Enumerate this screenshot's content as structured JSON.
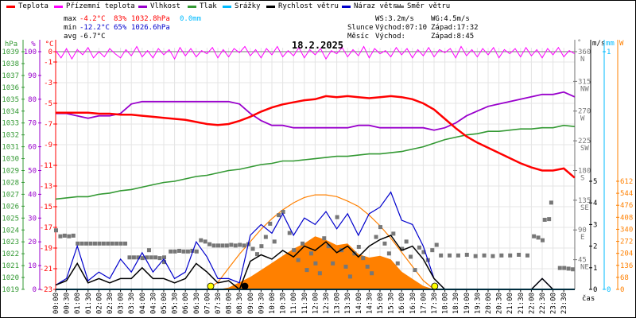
{
  "legend": [
    {
      "label": "Teplota",
      "color": "#ff0000"
    },
    {
      "label": "Přízemní teplota",
      "color": "#ff00ff"
    },
    {
      "label": "Vlhkost",
      "color": "#9900cc"
    },
    {
      "label": "Tlak",
      "color": "#339933"
    },
    {
      "label": "Srážky",
      "color": "#00bbff"
    },
    {
      "label": "Rychlost větru",
      "color": "#000000"
    },
    {
      "label": "Náraz větru",
      "color": "#0000cc"
    },
    {
      "label": "Směr větru",
      "color": "#777777"
    }
  ],
  "stats": {
    "max_label": "max",
    "max_temp": "-4.2°C",
    "max_hum": "83%",
    "max_press": "1032.8hPa",
    "max_rain": "0.0mm",
    "min_label": "min",
    "min_temp": "-12.2°C",
    "min_hum": "65%",
    "min_press": "1026.6hPa",
    "avg_label": "avg",
    "avg_temp": "-6.7°C",
    "ws": "WS:3.2m/s",
    "wg": "WG:4.5m/s",
    "sun_label": "Slunce",
    "sun_rise": "Východ:07:10",
    "sun_set": "Západ:17:32",
    "moon_label": "Měsíc",
    "moon_rise": "Východ:",
    "moon_set": "Západ:8:45"
  },
  "colors": {
    "temp": "#ff0000",
    "ground": "#ff00ff",
    "hum": "#9900cc",
    "press": "#339933",
    "rain": "#00bbff",
    "wind": "#000000",
    "gust": "#0000cc",
    "dir": "#777777",
    "solar": "#ff8000",
    "sun": "#ffff00"
  },
  "chart_data": {
    "type": "line",
    "title": "18.2.2025",
    "xlabel": "čas",
    "x_ticks": [
      "00:00",
      "00:30",
      "01:00",
      "01:30",
      "02:00",
      "02:30",
      "03:00",
      "03:30",
      "04:00",
      "04:30",
      "05:00",
      "05:30",
      "06:00",
      "06:30",
      "07:00",
      "07:30",
      "08:00",
      "08:30",
      "09:00",
      "09:30",
      "10:00",
      "10:30",
      "11:00",
      "11:30",
      "12:00",
      "12:30",
      "13:00",
      "13:30",
      "14:00",
      "14:30",
      "15:00",
      "15:30",
      "16:00",
      "16:30",
      "17:00",
      "17:30",
      "18:00",
      "18:30",
      "19:00",
      "19:30",
      "20:00",
      "20:30",
      "21:00",
      "21:30",
      "22:00",
      "22:30",
      "23:00",
      "23:30"
    ],
    "axes": {
      "pressure": {
        "unit": "hPa",
        "range": [
          1019,
          1039
        ],
        "ticks": [
          "1039",
          "1038",
          "1037",
          "1036",
          "1035",
          "1034",
          "1033",
          "1032",
          "1031",
          "1030",
          "1029",
          "1028",
          "1027",
          "1026",
          "1025",
          "1024",
          "1023",
          "1022",
          "1021",
          "1020",
          "1019"
        ]
      },
      "humidity": {
        "unit": "%",
        "range": [
          0,
          100
        ],
        "ticks": [
          "100",
          "90",
          "80",
          "70",
          "60",
          "50",
          "40",
          "30",
          "20",
          "10",
          "0"
        ]
      },
      "temperature": {
        "unit": "°C",
        "range": [
          -23,
          0
        ],
        "ticks": [
          "0",
          "-1",
          "-3",
          "-5",
          "-7",
          "-9",
          "-11",
          "-13",
          "-15",
          "-17",
          "-19",
          "-21",
          "-23"
        ]
      },
      "direction": {
        "unit": "°",
        "range": [
          0,
          360
        ],
        "ticks": [
          [
            "360",
            "N"
          ],
          [
            "315",
            "NW"
          ],
          [
            "270",
            "W"
          ],
          [
            "225",
            "SW"
          ],
          [
            "180",
            "S"
          ],
          [
            "135",
            "SE"
          ],
          [
            "90",
            "E"
          ],
          [
            "45",
            "NE"
          ]
        ]
      },
      "wind": {
        "unit": "m/s",
        "range": [
          0,
          5
        ],
        "ticks": [
          "5",
          "4",
          "3",
          "2",
          "1",
          "0"
        ]
      },
      "rain": {
        "unit": "mm",
        "range": [
          0,
          1
        ],
        "ticks": [
          "1",
          "0"
        ]
      },
      "solar": {
        "unit": "W",
        "range": [
          0,
          612
        ],
        "ticks": [
          "612",
          "544",
          "476",
          "408",
          "340",
          "272",
          "204",
          "136",
          "68",
          "0"
        ]
      }
    },
    "time_step_hours": 0.5,
    "series": [
      {
        "name": "Teplota",
        "unit": "°C",
        "values": [
          -5.9,
          -5.9,
          -5.9,
          -5.9,
          -6.0,
          -6.0,
          -6.1,
          -6.1,
          -6.2,
          -6.3,
          -6.4,
          -6.5,
          -6.6,
          -6.8,
          -7.0,
          -7.1,
          -7.0,
          -6.7,
          -6.3,
          -5.8,
          -5.4,
          -5.1,
          -4.9,
          -4.7,
          -4.6,
          -4.3,
          -4.4,
          -4.3,
          -4.4,
          -4.5,
          -4.4,
          -4.3,
          -4.4,
          -4.6,
          -5.0,
          -5.6,
          -6.5,
          -7.4,
          -8.2,
          -8.8,
          -9.3,
          -9.8,
          -10.3,
          -10.8,
          -11.2,
          -11.5,
          -11.5,
          -11.3,
          -12.2
        ]
      },
      {
        "name": "Vlhkost",
        "unit": "%",
        "values": [
          74,
          74,
          73,
          72,
          73,
          73,
          74,
          78,
          79,
          79,
          79,
          79,
          79,
          79,
          79,
          79,
          79,
          78,
          74,
          71,
          69,
          69,
          68,
          68,
          68,
          68,
          68,
          68,
          69,
          69,
          68,
          68,
          68,
          68,
          68,
          67,
          68,
          70,
          73,
          75,
          77,
          78,
          79,
          80,
          81,
          82,
          82,
          83,
          81
        ]
      },
      {
        "name": "Tlak",
        "unit": "hPa",
        "values": [
          1026.6,
          1026.7,
          1026.8,
          1026.8,
          1027.0,
          1027.1,
          1027.3,
          1027.4,
          1027.6,
          1027.8,
          1028.0,
          1028.1,
          1028.3,
          1028.5,
          1028.6,
          1028.8,
          1029.0,
          1029.1,
          1029.3,
          1029.5,
          1029.6,
          1029.8,
          1029.8,
          1029.9,
          1030.0,
          1030.1,
          1030.2,
          1030.2,
          1030.3,
          1030.4,
          1030.4,
          1030.5,
          1030.6,
          1030.8,
          1031.0,
          1031.3,
          1031.6,
          1031.8,
          1032.0,
          1032.1,
          1032.3,
          1032.3,
          1032.4,
          1032.5,
          1032.5,
          1032.6,
          1032.6,
          1032.8,
          1032.7
        ]
      },
      {
        "name": "Rychlost větru",
        "unit": "m/s",
        "values": [
          0.2,
          0.4,
          1.2,
          0.3,
          0.5,
          0.3,
          0.5,
          0.5,
          1.0,
          0.5,
          0.5,
          0.3,
          0.5,
          1.2,
          0.8,
          0.3,
          0.4,
          0,
          1.3,
          1.6,
          1.4,
          1.8,
          1.5,
          2.0,
          1.8,
          2.2,
          1.7,
          2.0,
          1.5,
          2.0,
          2.3,
          2.5,
          1.8,
          2.0,
          1.4,
          0.5,
          0,
          0,
          0,
          0,
          0,
          0,
          0,
          0,
          0,
          0.5,
          0,
          0,
          0
        ]
      },
      {
        "name": "Náraz větru",
        "unit": "m/s",
        "values": [
          0.2,
          0.5,
          2.0,
          0.4,
          0.8,
          0.5,
          1.4,
          0.8,
          1.7,
          0.8,
          1.4,
          0.5,
          0.8,
          2.2,
          1.5,
          0.5,
          0.5,
          0.3,
          2.5,
          3.0,
          2.6,
          3.5,
          2.5,
          3.3,
          3.0,
          3.6,
          2.8,
          3.5,
          2.5,
          3.5,
          3.8,
          4.5,
          3.2,
          3.0,
          2.0,
          0.5,
          0,
          0,
          0,
          0,
          0,
          0,
          0,
          0,
          0,
          0.5,
          0,
          0,
          0
        ]
      },
      {
        "name": "Srážky",
        "unit": "mm",
        "values": [
          0,
          0,
          0,
          0,
          0,
          0,
          0,
          0,
          0,
          0,
          0,
          0,
          0,
          0,
          0,
          0,
          0,
          0,
          0,
          0,
          0,
          0,
          0,
          0,
          0,
          0,
          0,
          0,
          0,
          0,
          0,
          0,
          0,
          0,
          0,
          0,
          0,
          0,
          0,
          0,
          0,
          0,
          0,
          0,
          0,
          0,
          0,
          0,
          0
        ]
      },
      {
        "name": "Sluneční záření",
        "unit": "W",
        "values": [
          0,
          0,
          0,
          0,
          0,
          0,
          0,
          0,
          0,
          0,
          0,
          0,
          0,
          0,
          0,
          0,
          10,
          40,
          70,
          110,
          150,
          190,
          230,
          260,
          300,
          280,
          250,
          260,
          200,
          180,
          190,
          170,
          100,
          60,
          20,
          0,
          0,
          0,
          0,
          0,
          0,
          0,
          0,
          0,
          0,
          0,
          0,
          0,
          0
        ]
      },
      {
        "name": "Max. záření",
        "unit": "W",
        "values": [
          0,
          0,
          0,
          0,
          0,
          0,
          0,
          0,
          0,
          0,
          0,
          0,
          0,
          0,
          0,
          40,
          120,
          200,
          270,
          340,
          400,
          450,
          490,
          520,
          535,
          535,
          525,
          500,
          470,
          420,
          360,
          290,
          210,
          130,
          50,
          0,
          0,
          0,
          0,
          0,
          0,
          0,
          0,
          0,
          0,
          0,
          0,
          0,
          0
        ]
      }
    ],
    "ground_temp": {
      "name": "Přízemní teplota",
      "unit": "°C",
      "time_step_hours": 0.25,
      "values": [
        0.1,
        -0.6,
        0.3,
        -0.7,
        0.2,
        -0.3,
        0.4,
        -0.6,
        0.0,
        -0.5,
        0.3,
        -0.2,
        -0.6,
        0.2,
        -0.4,
        0.5,
        -0.5,
        0.1,
        -0.6,
        0.3,
        -0.3,
        0.2,
        -0.7,
        0.4,
        -0.4,
        0.3,
        -0.5,
        0.1,
        -0.2,
        0.4,
        -0.6,
        0.2,
        -0.5,
        0.3,
        -0.1,
        0.5,
        -0.4,
        0.2,
        -0.6,
        0.3,
        -0.3,
        0.5,
        -0.5,
        0.1,
        -0.4,
        0.4,
        -0.6,
        0.2,
        -0.3,
        0.3,
        -0.7,
        0.1,
        -0.2,
        0.4,
        -0.5,
        0.2,
        -0.4,
        0.5,
        -0.6,
        0.3,
        -0.2,
        0.1,
        -0.5,
        0.4,
        -0.3,
        0.3,
        -0.6,
        0.2,
        -0.4,
        0.4,
        -0.5,
        0.2,
        -0.1,
        0.3,
        -0.6,
        0.5,
        -0.4,
        0.2,
        -0.5,
        0.3,
        -0.3,
        0.4,
        -0.6,
        0.2,
        -0.2,
        0.3,
        -0.5,
        0.4,
        -0.4,
        0.2,
        -0.6,
        0.3,
        -0.3,
        0.4,
        -0.5,
        0.1,
        -0.2
      ]
    },
    "wind_direction": {
      "name": "Směr větru",
      "unit": "°",
      "points": [
        [
          0,
          90
        ],
        [
          0.2,
          81
        ],
        [
          0.4,
          82
        ],
        [
          0.6,
          81
        ],
        [
          0.8,
          82
        ],
        [
          1.0,
          70
        ],
        [
          1.2,
          70
        ],
        [
          1.4,
          70
        ],
        [
          1.6,
          70
        ],
        [
          1.8,
          70
        ],
        [
          2.0,
          70
        ],
        [
          2.2,
          70
        ],
        [
          2.4,
          70
        ],
        [
          2.6,
          70
        ],
        [
          2.8,
          70
        ],
        [
          3.0,
          70
        ],
        [
          3.2,
          70
        ],
        [
          3.4,
          49
        ],
        [
          3.6,
          49
        ],
        [
          3.8,
          49
        ],
        [
          4.0,
          48
        ],
        [
          4.2,
          49
        ],
        [
          4.4,
          49
        ],
        [
          4.6,
          49
        ],
        [
          4.8,
          48
        ],
        [
          5.0,
          49
        ],
        [
          4.3,
          60
        ],
        [
          5.0,
          42
        ],
        [
          5.3,
          58
        ],
        [
          5.5,
          58
        ],
        [
          5.7,
          59
        ],
        [
          5.9,
          58
        ],
        [
          6.1,
          58
        ],
        [
          6.3,
          59
        ],
        [
          6.5,
          58
        ],
        [
          6.7,
          75
        ],
        [
          6.9,
          73
        ],
        [
          7.1,
          69
        ],
        [
          7.3,
          67
        ],
        [
          7.5,
          67
        ],
        [
          7.7,
          67
        ],
        [
          7.9,
          67
        ],
        [
          8.1,
          68
        ],
        [
          8.3,
          67
        ],
        [
          8.5,
          68
        ],
        [
          8.7,
          67
        ],
        [
          8.9,
          69
        ],
        [
          9.1,
          62
        ],
        [
          9.3,
          54
        ],
        [
          9.5,
          66
        ],
        [
          9.7,
          80
        ],
        [
          9.9,
          100
        ],
        [
          10.1,
          73
        ],
        [
          10.3,
          113
        ],
        [
          10.5,
          118
        ],
        [
          10.8,
          86
        ],
        [
          11.0,
          60
        ],
        [
          11.2,
          45
        ],
        [
          11.4,
          70
        ],
        [
          11.6,
          30
        ],
        [
          11.8,
          55
        ],
        [
          12.0,
          40
        ],
        [
          12.2,
          25
        ],
        [
          12.4,
          78
        ],
        [
          12.6,
          66
        ],
        [
          12.8,
          40
        ],
        [
          13.0,
          110
        ],
        [
          13.2,
          60
        ],
        [
          13.4,
          35
        ],
        [
          13.6,
          20
        ],
        [
          13.8,
          55
        ],
        [
          14.0,
          65
        ],
        [
          14.2,
          48
        ],
        [
          14.4,
          35
        ],
        [
          14.6,
          25
        ],
        [
          14.8,
          80
        ],
        [
          15.0,
          95
        ],
        [
          15.2,
          70
        ],
        [
          15.4,
          55
        ],
        [
          15.6,
          85
        ],
        [
          15.8,
          40
        ],
        [
          16.0,
          62
        ],
        [
          16.2,
          73
        ],
        [
          16.4,
          50
        ],
        [
          16.6,
          30
        ],
        [
          16.8,
          64
        ],
        [
          17.0,
          57
        ],
        [
          17.2,
          45
        ],
        [
          17.4,
          60
        ],
        [
          17.6,
          68
        ],
        [
          17.8,
          52
        ],
        [
          18.2,
          52
        ],
        [
          18.6,
          52
        ],
        [
          19.0,
          53
        ],
        [
          19.4,
          51
        ],
        [
          19.8,
          52
        ],
        [
          20.2,
          51
        ],
        [
          20.6,
          52
        ],
        [
          21.0,
          52
        ],
        [
          21.4,
          53
        ],
        [
          21.8,
          52
        ],
        [
          22.1,
          81
        ],
        [
          22.3,
          79
        ],
        [
          22.5,
          75
        ],
        [
          22.6,
          106
        ],
        [
          22.8,
          107
        ],
        [
          22.9,
          132
        ],
        [
          23.3,
          33
        ],
        [
          23.5,
          33
        ],
        [
          23.7,
          32
        ],
        [
          23.9,
          31
        ]
      ]
    },
    "markers": [
      {
        "label": "Východ slunce",
        "time": 7.17,
        "color": "#ffff00"
      },
      {
        "label": "Západ slunce",
        "time": 17.53,
        "color": "#ffff00"
      },
      {
        "label": "Západ měsíce",
        "time": 8.75,
        "color": "#000000"
      }
    ],
    "grid": true
  }
}
